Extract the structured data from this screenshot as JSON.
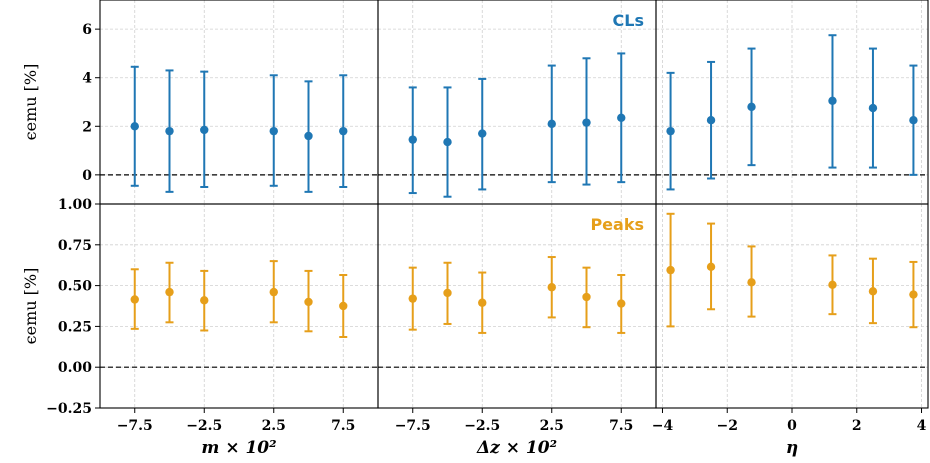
{
  "colors": {
    "cls": "#1f77b4",
    "peaks": "#e69f1a",
    "grid": "#d0d0d0",
    "zero_line": "#000000"
  },
  "chart_data": {
    "type": "scatter",
    "style": "errorbar",
    "grid": true,
    "rows": [
      {
        "ylabel": "ϵemu [%]",
        "annotation": "CLs",
        "ylim": [
          -1.2,
          7.2
        ],
        "yticks": [
          0,
          2,
          4,
          6
        ],
        "ytick_labels": [
          "0",
          "2",
          "4",
          "6"
        ],
        "color_key": "cls"
      },
      {
        "ylabel": "ϵemu [%]",
        "annotation": "Peaks",
        "ylim": [
          -0.25,
          1.0
        ],
        "yticks": [
          -0.25,
          0,
          0.25,
          0.5,
          0.75,
          1.0
        ],
        "ytick_labels": [
          "−0.25",
          "0.00",
          "0.25",
          "0.50",
          "0.75",
          "1.00"
        ],
        "color_key": "peaks"
      }
    ],
    "columns": [
      {
        "xlabel": "m × 10²",
        "xlim": [
          -10.0,
          10.0
        ],
        "xticks": [
          -7.5,
          -2.5,
          2.5,
          7.5
        ],
        "xtick_labels": [
          "−7.5",
          "−2.5",
          "2.5",
          "7.5"
        ]
      },
      {
        "xlabel": "Δz × 10²",
        "xlim": [
          -10.0,
          10.0
        ],
        "xticks": [
          -7.5,
          -2.5,
          2.5,
          7.5
        ],
        "xtick_labels": [
          "−7.5",
          "−2.5",
          "2.5",
          "7.5"
        ]
      },
      {
        "xlabel": "η",
        "xlim": [
          -4.2,
          4.2
        ],
        "xticks": [
          -4,
          -2,
          0,
          2,
          4
        ],
        "xtick_labels": [
          "−4",
          "−2",
          "0",
          "2",
          "4"
        ]
      }
    ],
    "panels": [
      {
        "row": 0,
        "col": 0,
        "series": "CLs",
        "x": [
          -7.5,
          -5.0,
          -2.5,
          2.5,
          5.0,
          7.5
        ],
        "y": [
          2.0,
          1.8,
          1.85,
          1.8,
          1.6,
          1.8
        ],
        "y_low": [
          -0.45,
          -0.7,
          -0.5,
          -0.45,
          -0.7,
          -0.5
        ],
        "y_high": [
          4.45,
          4.3,
          4.25,
          4.1,
          3.85,
          4.1
        ]
      },
      {
        "row": 0,
        "col": 1,
        "series": "CLs",
        "x": [
          -7.5,
          -5.0,
          -2.5,
          2.5,
          5.0,
          7.5
        ],
        "y": [
          1.45,
          1.35,
          1.7,
          2.1,
          2.15,
          2.35
        ],
        "y_low": [
          -0.75,
          -0.9,
          -0.6,
          -0.3,
          -0.4,
          -0.3
        ],
        "y_high": [
          3.6,
          3.6,
          3.95,
          4.5,
          4.8,
          5.0
        ]
      },
      {
        "row": 0,
        "col": 2,
        "series": "CLs",
        "x": [
          -3.75,
          -2.5,
          -1.25,
          1.25,
          2.5,
          3.75
        ],
        "y": [
          1.8,
          2.25,
          2.8,
          3.05,
          2.75,
          2.25
        ],
        "y_low": [
          -0.6,
          -0.15,
          0.4,
          0.3,
          0.3,
          0.0
        ],
        "y_high": [
          4.2,
          4.65,
          5.2,
          5.75,
          5.2,
          4.5
        ]
      },
      {
        "row": 1,
        "col": 0,
        "series": "Peaks",
        "x": [
          -7.5,
          -5.0,
          -2.5,
          2.5,
          5.0,
          7.5
        ],
        "y": [
          0.415,
          0.46,
          0.41,
          0.46,
          0.4,
          0.375
        ],
        "y_low": [
          0.235,
          0.275,
          0.225,
          0.275,
          0.22,
          0.185
        ],
        "y_high": [
          0.6,
          0.64,
          0.59,
          0.65,
          0.59,
          0.565
        ]
      },
      {
        "row": 1,
        "col": 1,
        "series": "Peaks",
        "x": [
          -7.5,
          -5.0,
          -2.5,
          2.5,
          5.0,
          7.5
        ],
        "y": [
          0.42,
          0.455,
          0.395,
          0.49,
          0.43,
          0.39
        ],
        "y_low": [
          0.23,
          0.265,
          0.21,
          0.305,
          0.245,
          0.21
        ],
        "y_high": [
          0.61,
          0.64,
          0.58,
          0.675,
          0.61,
          0.565
        ]
      },
      {
        "row": 1,
        "col": 2,
        "series": "Peaks",
        "x": [
          -3.75,
          -2.5,
          -1.25,
          1.25,
          2.5,
          3.75
        ],
        "y": [
          0.595,
          0.615,
          0.52,
          0.505,
          0.465,
          0.445
        ],
        "y_low": [
          0.25,
          0.355,
          0.31,
          0.325,
          0.27,
          0.245
        ],
        "y_high": [
          0.94,
          0.88,
          0.74,
          0.685,
          0.665,
          0.645
        ]
      }
    ]
  }
}
